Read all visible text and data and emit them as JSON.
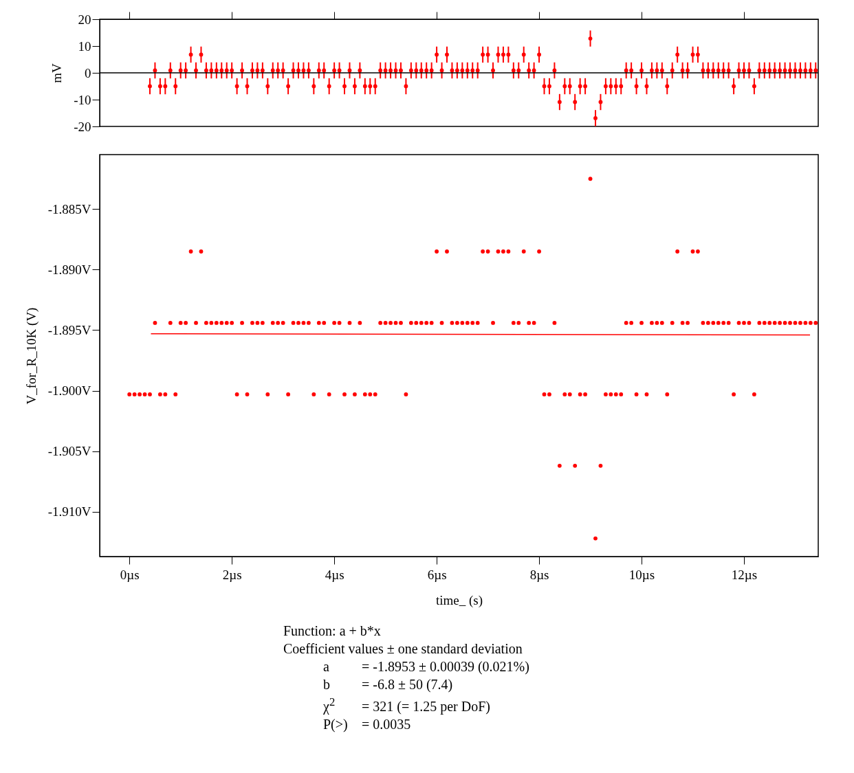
{
  "chart_data": [
    {
      "type": "scatter",
      "ylabel": "mV",
      "marker": "circle",
      "tick_labels": "y",
      "xlim": [
        -0.58,
        13.45
      ],
      "xticks": [
        0,
        2,
        4,
        6,
        8,
        10,
        12
      ],
      "ylim": [
        -20,
        20
      ],
      "yticks": [
        20,
        10,
        0,
        -10,
        -20
      ],
      "ref_lines": [
        {
          "axis": "y",
          "value": 0,
          "color": "#000000"
        }
      ],
      "series": [
        {
          "color": "#ff0000",
          "x": [
            0.4,
            0.5,
            0.6,
            0.7,
            0.8,
            0.9,
            1,
            1.1,
            1.2,
            1.3,
            1.4,
            1.5,
            1.6,
            1.7,
            1.8,
            1.9,
            2,
            2.1,
            2.2,
            2.3,
            2.4,
            2.5,
            2.6,
            2.7,
            2.8,
            2.9,
            3,
            3.1,
            3.2,
            3.3,
            3.4,
            3.5,
            3.6,
            3.7,
            3.8,
            3.9,
            4,
            4.1,
            4.2,
            4.3,
            4.4,
            4.5,
            4.6,
            4.7,
            4.8,
            4.9,
            5,
            5.1,
            5.2,
            5.3,
            5.4,
            5.5,
            5.6,
            5.7,
            5.8,
            5.9,
            6,
            6.1,
            6.2,
            6.3,
            6.4,
            6.5,
            6.6,
            6.7,
            6.8,
            6.9,
            7,
            7.1,
            7.2,
            7.3,
            7.4,
            7.5,
            7.6,
            7.7,
            7.8,
            7.9,
            8,
            8.1,
            8.2,
            8.3,
            8.4,
            8.5,
            8.6,
            8.7,
            8.8,
            8.9,
            9,
            9.1,
            9.2,
            9.3,
            9.4,
            9.5,
            9.6,
            9.7,
            9.8,
            9.9,
            10,
            10.1,
            10.2,
            10.3,
            10.4,
            10.5,
            10.6,
            10.7,
            10.8,
            10.9,
            11,
            11.1,
            11.2,
            11.3,
            11.4,
            11.5,
            11.6,
            11.7,
            11.8,
            11.9,
            12,
            12.1,
            12.2,
            12.3,
            12.4,
            12.5,
            12.6,
            12.7,
            12.8,
            12.9,
            13,
            13.1,
            13.2,
            13.3,
            13.4
          ],
          "values": [
            -5,
            0.9,
            -5,
            -5,
            0.9,
            -5,
            0.9,
            0.9,
            6.8,
            0.9,
            6.8,
            0.9,
            0.9,
            0.9,
            0.9,
            0.9,
            0.9,
            -5,
            0.9,
            -5,
            0.9,
            0.9,
            0.9,
            -5,
            0.9,
            0.9,
            0.9,
            -5,
            0.9,
            0.9,
            0.9,
            0.9,
            -5,
            0.9,
            0.9,
            -5,
            0.9,
            0.9,
            -5,
            0.9,
            -5,
            0.9,
            -5,
            -5,
            -5,
            0.9,
            0.9,
            0.9,
            0.9,
            0.9,
            -5,
            0.9,
            0.9,
            0.9,
            0.9,
            0.9,
            6.8,
            0.9,
            6.8,
            0.9,
            0.9,
            0.9,
            0.9,
            0.9,
            0.9,
            6.8,
            6.8,
            0.9,
            6.8,
            6.8,
            6.8,
            0.9,
            0.9,
            6.8,
            0.9,
            0.9,
            6.8,
            -5,
            -5,
            0.9,
            -10.9,
            -5,
            -5,
            -10.9,
            -5,
            -5,
            12.8,
            -16.9,
            -10.9,
            -5,
            -5,
            -5,
            -5,
            0.9,
            0.9,
            -5,
            0.9,
            -5,
            0.9,
            0.9,
            0.9,
            -5,
            0.9,
            6.8,
            0.9,
            0.9,
            6.8,
            6.8,
            0.9,
            0.9,
            0.9,
            0.9,
            0.9,
            0.9,
            -5,
            0.9,
            0.9,
            0.9,
            -5,
            0.9,
            0.9,
            0.9,
            0.9,
            0.9,
            0.9,
            0.9,
            0.9,
            0.9,
            0.9,
            0.9,
            0.9
          ],
          "errors": [
            3,
            3,
            3,
            3,
            3,
            3,
            3,
            3,
            3,
            3,
            3,
            3,
            3,
            3,
            3,
            3,
            3,
            3,
            3,
            3,
            3,
            3,
            3,
            3,
            3,
            3,
            3,
            3,
            3,
            3,
            3,
            3,
            3,
            3,
            3,
            3,
            3,
            3,
            3,
            3,
            3,
            3,
            3,
            3,
            3,
            3,
            3,
            3,
            3,
            3,
            3,
            3,
            3,
            3,
            3,
            3,
            3,
            3,
            3,
            3,
            3,
            3,
            3,
            3,
            3,
            3,
            3,
            3,
            3,
            3,
            3,
            3,
            3,
            3,
            3,
            3,
            3,
            3,
            3,
            3,
            3,
            3,
            3,
            3,
            3,
            3,
            3,
            3,
            3,
            3,
            3,
            3,
            3,
            3,
            3,
            3,
            3,
            3,
            3,
            3,
            3,
            3,
            3,
            3,
            3,
            3,
            3,
            3,
            3,
            3,
            3,
            3,
            3,
            3,
            3,
            3,
            3,
            3,
            3,
            3,
            3,
            3,
            3,
            3,
            3,
            3,
            3,
            3,
            3,
            3,
            3
          ]
        }
      ]
    },
    {
      "type": "scatter",
      "xlabel": "time_ (s)",
      "ylabel": "V_for_R_10K (V)",
      "marker": "circle",
      "xlim": [
        -0.58,
        13.45
      ],
      "xticks": [
        {
          "value": 0,
          "label": "0µs"
        },
        {
          "value": 2,
          "label": "2µs"
        },
        {
          "value": 4,
          "label": "4µs"
        },
        {
          "value": 6,
          "label": "6µs"
        },
        {
          "value": 8,
          "label": "8µs"
        },
        {
          "value": 10,
          "label": "10µs"
        },
        {
          "value": 12,
          "label": "12µs"
        }
      ],
      "ylim": [
        -1.9137,
        -1.8805
      ],
      "yticks": [
        {
          "value": -1.885,
          "label": "-1.885V"
        },
        {
          "value": -1.89,
          "label": "-1.890V"
        },
        {
          "value": -1.895,
          "label": "-1.895V"
        },
        {
          "value": -1.9,
          "label": "-1.900V"
        },
        {
          "value": -1.905,
          "label": "-1.905V"
        },
        {
          "value": -1.91,
          "label": "-1.910V"
        }
      ],
      "annotations": [
        "Function: a + b*x",
        "Coefficient values ± one standard deviation",
        "a\t= -1.8953 ± 0.00039  (0.021%)",
        "b\t= -6.8 ± 50  (7.4)",
        "χ$^{2}$\t= 321 (= 1.25 per DoF)",
        "P(>)\t= 0.0035"
      ],
      "series": [
        {
          "color": "#ff0000",
          "x": [
            0,
            0.1,
            0.2,
            0.3,
            0.4,
            0.5,
            0.6,
            0.7,
            0.8,
            0.9,
            1,
            1.1,
            1.2,
            1.3,
            1.4,
            1.5,
            1.6,
            1.7,
            1.8,
            1.9,
            2,
            2.1,
            2.2,
            2.3,
            2.4,
            2.5,
            2.6,
            2.7,
            2.8,
            2.9,
            3,
            3.1,
            3.2,
            3.3,
            3.4,
            3.5,
            3.6,
            3.7,
            3.8,
            3.9,
            4,
            4.1,
            4.2,
            4.3,
            4.4,
            4.5,
            4.6,
            4.7,
            4.8,
            4.9,
            5,
            5.1,
            5.2,
            5.3,
            5.4,
            5.5,
            5.6,
            5.7,
            5.8,
            5.9,
            6,
            6.1,
            6.2,
            6.3,
            6.4,
            6.5,
            6.6,
            6.7,
            6.8,
            6.9,
            7,
            7.1,
            7.2,
            7.3,
            7.4,
            7.5,
            7.6,
            7.7,
            7.8,
            7.9,
            8,
            8.1,
            8.2,
            8.3,
            8.4,
            8.5,
            8.6,
            8.7,
            8.8,
            8.9,
            9,
            9.1,
            9.2,
            9.3,
            9.4,
            9.5,
            9.6,
            9.7,
            9.8,
            9.9,
            10,
            10.1,
            10.2,
            10.3,
            10.4,
            10.5,
            10.6,
            10.7,
            10.8,
            10.9,
            11,
            11.1,
            11.2,
            11.3,
            11.4,
            11.5,
            11.6,
            11.7,
            11.8,
            11.9,
            12,
            12.1,
            12.2,
            12.3,
            12.4,
            12.5,
            12.6,
            12.7,
            12.8,
            12.9,
            13,
            13.1,
            13.2,
            13.3,
            13.4
          ],
          "values": [
            -1.9003,
            -1.9003,
            -1.9003,
            -1.9003,
            -1.9003,
            -1.8944,
            -1.9003,
            -1.9003,
            -1.8944,
            -1.9003,
            -1.8944,
            -1.8944,
            -1.8885,
            -1.8944,
            -1.8885,
            -1.8944,
            -1.8944,
            -1.8944,
            -1.8944,
            -1.8944,
            -1.8944,
            -1.9003,
            -1.8944,
            -1.9003,
            -1.8944,
            -1.8944,
            -1.8944,
            -1.9003,
            -1.8944,
            -1.8944,
            -1.8944,
            -1.9003,
            -1.8944,
            -1.8944,
            -1.8944,
            -1.8944,
            -1.9003,
            -1.8944,
            -1.8944,
            -1.9003,
            -1.8944,
            -1.8944,
            -1.9003,
            -1.8944,
            -1.9003,
            -1.8944,
            -1.9003,
            -1.9003,
            -1.9003,
            -1.8944,
            -1.8944,
            -1.8944,
            -1.8944,
            -1.8944,
            -1.9003,
            -1.8944,
            -1.8944,
            -1.8944,
            -1.8944,
            -1.8944,
            -1.8885,
            -1.8944,
            -1.8885,
            -1.8944,
            -1.8944,
            -1.8944,
            -1.8944,
            -1.8944,
            -1.8944,
            -1.8885,
            -1.8885,
            -1.8944,
            -1.8885,
            -1.8885,
            -1.8885,
            -1.8944,
            -1.8944,
            -1.8885,
            -1.8944,
            -1.8944,
            -1.8885,
            -1.9003,
            -1.9003,
            -1.8944,
            -1.9062,
            -1.9003,
            -1.9003,
            -1.9062,
            -1.9003,
            -1.9003,
            -1.8825,
            -1.9122,
            -1.9062,
            -1.9003,
            -1.9003,
            -1.9003,
            -1.9003,
            -1.8944,
            -1.8944,
            -1.9003,
            -1.8944,
            -1.9003,
            -1.8944,
            -1.8944,
            -1.8944,
            -1.9003,
            -1.8944,
            -1.8885,
            -1.8944,
            -1.8944,
            -1.8885,
            -1.8885,
            -1.8944,
            -1.8944,
            -1.8944,
            -1.8944,
            -1.8944,
            -1.8944,
            -1.9003,
            -1.8944,
            -1.8944,
            -1.8944,
            -1.9003,
            -1.8944,
            -1.8944,
            -1.8944,
            -1.8944,
            -1.8944,
            -1.8944,
            -1.8944,
            -1.8944,
            -1.8944,
            -1.8944,
            -1.8944,
            -1.8944
          ]
        },
        {
          "type": "line",
          "color": "#ff0000",
          "marker": "none",
          "x": [
            0.42,
            13.29
          ],
          "values": [
            -1.8953,
            -1.8954
          ]
        }
      ]
    }
  ]
}
